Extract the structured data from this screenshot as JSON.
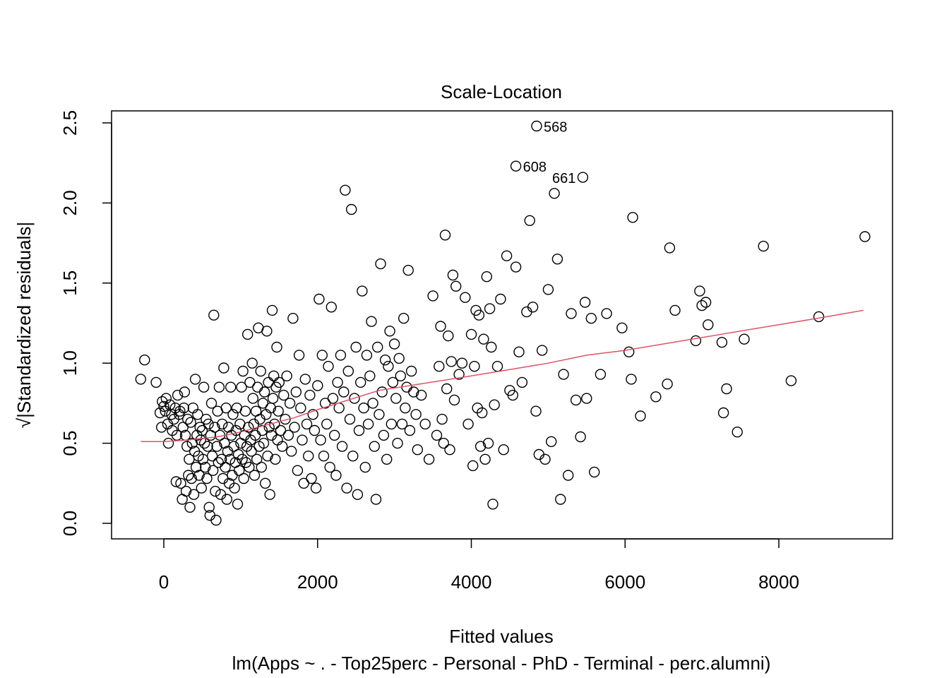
{
  "chart_data": {
    "type": "scatter",
    "title": "Scale-Location",
    "xlabel": "Fitted values",
    "ylabel": "√|Standardized residuals|",
    "subtitle": "lm(Apps ~ . - Top25perc - Personal - PhD - Terminal - perc.alumni)",
    "xlim": [
      -350,
      9200
    ],
    "ylim": [
      -0.1,
      2.6
    ],
    "x_ticks": [
      0,
      2000,
      4000,
      6000,
      8000
    ],
    "y_ticks": [
      0.0,
      0.5,
      1.0,
      1.5,
      2.0,
      2.5
    ],
    "x_tick_labels": [
      "0",
      "2000",
      "4000",
      "6000",
      "8000"
    ],
    "y_tick_labels": [
      "0.0",
      "0.5",
      "1.0",
      "1.5",
      "2.0",
      "2.5"
    ],
    "grid": false,
    "legend": "none",
    "colors": {
      "points": "#000000",
      "smooth": "#DF536B"
    },
    "labeled_points": [
      {
        "label": "568",
        "x": 4850,
        "y": 2.48
      },
      {
        "label": "608",
        "x": 4580,
        "y": 2.23
      },
      {
        "label": "661",
        "x": 5450,
        "y": 2.16
      }
    ],
    "smooth_line": [
      [
        -300,
        0.51
      ],
      [
        0,
        0.51
      ],
      [
        300,
        0.52
      ],
      [
        700,
        0.54
      ],
      [
        1000,
        0.57
      ],
      [
        1300,
        0.61
      ],
      [
        1700,
        0.66
      ],
      [
        2000,
        0.71
      ],
      [
        2400,
        0.77
      ],
      [
        2800,
        0.83
      ],
      [
        3200,
        0.86
      ],
      [
        3600,
        0.89
      ],
      [
        4000,
        0.92
      ],
      [
        4500,
        0.96
      ],
      [
        5000,
        1.0
      ],
      [
        5500,
        1.05
      ],
      [
        6000,
        1.08
      ],
      [
        6500,
        1.12
      ],
      [
        7000,
        1.16
      ],
      [
        7500,
        1.2
      ],
      [
        8000,
        1.24
      ],
      [
        8500,
        1.28
      ],
      [
        9100,
        1.33
      ]
    ],
    "points": [
      [
        -300,
        0.9
      ],
      [
        -250,
        1.02
      ],
      [
        -100,
        0.88
      ],
      [
        -50,
        0.69
      ],
      [
        -30,
        0.6
      ],
      [
        -20,
        0.76
      ],
      [
        0,
        0.73
      ],
      [
        20,
        0.7
      ],
      [
        30,
        0.78
      ],
      [
        50,
        0.62
      ],
      [
        60,
        0.5
      ],
      [
        80,
        0.74
      ],
      [
        100,
        0.68
      ],
      [
        110,
        0.58
      ],
      [
        130,
        0.65
      ],
      [
        150,
        0.72
      ],
      [
        160,
        0.26
      ],
      [
        170,
        0.55
      ],
      [
        180,
        0.8
      ],
      [
        200,
        0.68
      ],
      [
        210,
        0.7
      ],
      [
        220,
        0.25
      ],
      [
        240,
        0.15
      ],
      [
        250,
        0.6
      ],
      [
        260,
        0.72
      ],
      [
        270,
        0.82
      ],
      [
        280,
        0.55
      ],
      [
        290,
        0.2
      ],
      [
        300,
        0.48
      ],
      [
        310,
        0.65
      ],
      [
        320,
        0.3
      ],
      [
        330,
        0.4
      ],
      [
        340,
        0.1
      ],
      [
        350,
        0.63
      ],
      [
        360,
        0.28
      ],
      [
        370,
        0.5
      ],
      [
        380,
        0.72
      ],
      [
        390,
        0.18
      ],
      [
        400,
        0.45
      ],
      [
        410,
        0.9
      ],
      [
        420,
        0.35
      ],
      [
        430,
        0.55
      ],
      [
        440,
        0.68
      ],
      [
        450,
        0.42
      ],
      [
        460,
        0.3
      ],
      [
        470,
        0.6
      ],
      [
        480,
        0.52
      ],
      [
        490,
        0.22
      ],
      [
        500,
        0.58
      ],
      [
        510,
        0.4
      ],
      [
        520,
        0.85
      ],
      [
        530,
        0.5
      ],
      [
        540,
        0.35
      ],
      [
        550,
        0.65
      ],
      [
        560,
        0.28
      ],
      [
        570,
        0.48
      ],
      [
        580,
        0.62
      ],
      [
        590,
        0.1
      ],
      [
        600,
        0.05
      ],
      [
        610,
        0.55
      ],
      [
        620,
        0.75
      ],
      [
        630,
        0.42
      ],
      [
        640,
        0.33
      ],
      [
        650,
        1.3
      ],
      [
        660,
        0.6
      ],
      [
        670,
        0.2
      ],
      [
        680,
        0.02
      ],
      [
        690,
        0.48
      ],
      [
        700,
        0.7
      ],
      [
        710,
        0.38
      ],
      [
        720,
        0.85
      ],
      [
        730,
        0.55
      ],
      [
        740,
        0.18
      ],
      [
        750,
        0.4
      ],
      [
        760,
        0.62
      ],
      [
        770,
        0.28
      ],
      [
        780,
        0.97
      ],
      [
        790,
        0.5
      ],
      [
        800,
        0.35
      ],
      [
        810,
        0.72
      ],
      [
        820,
        0.15
      ],
      [
        830,
        0.45
      ],
      [
        840,
        0.6
      ],
      [
        850,
        0.25
      ],
      [
        860,
        0.4
      ],
      [
        870,
        0.85
      ],
      [
        880,
        0.55
      ],
      [
        890,
        0.3
      ],
      [
        900,
        0.68
      ],
      [
        910,
        0.48
      ],
      [
        920,
        0.22
      ],
      [
        930,
        0.38
      ],
      [
        940,
        0.58
      ],
      [
        950,
        0.72
      ],
      [
        960,
        0.12
      ],
      [
        970,
        0.43
      ],
      [
        980,
        0.33
      ],
      [
        990,
        0.62
      ],
      [
        1000,
        0.5
      ],
      [
        1010,
        0.85
      ],
      [
        1020,
        0.4
      ],
      [
        1030,
        0.95
      ],
      [
        1040,
        0.28
      ],
      [
        1050,
        0.55
      ],
      [
        1060,
        0.7
      ],
      [
        1070,
        0.38
      ],
      [
        1080,
        0.48
      ],
      [
        1090,
        1.18
      ],
      [
        1100,
        0.6
      ],
      [
        1110,
        0.35
      ],
      [
        1120,
        0.88
      ],
      [
        1130,
        0.52
      ],
      [
        1140,
        0.45
      ],
      [
        1150,
        1.0
      ],
      [
        1160,
        0.78
      ],
      [
        1170,
        0.62
      ],
      [
        1180,
        0.3
      ],
      [
        1190,
        0.55
      ],
      [
        1200,
        0.7
      ],
      [
        1210,
        0.4
      ],
      [
        1220,
        0.85
      ],
      [
        1230,
        1.22
      ],
      [
        1240,
        0.48
      ],
      [
        1250,
        0.65
      ],
      [
        1260,
        0.95
      ],
      [
        1270,
        0.35
      ],
      [
        1280,
        0.58
      ],
      [
        1290,
        0.75
      ],
      [
        1300,
        0.5
      ],
      [
        1310,
        0.82
      ],
      [
        1320,
        0.25
      ],
      [
        1330,
        0.68
      ],
      [
        1340,
        1.2
      ],
      [
        1350,
        0.42
      ],
      [
        1360,
        0.88
      ],
      [
        1370,
        0.6
      ],
      [
        1380,
        0.18
      ],
      [
        1390,
        0.72
      ],
      [
        1400,
        0.55
      ],
      [
        1410,
        1.33
      ],
      [
        1420,
        0.78
      ],
      [
        1430,
        0.92
      ],
      [
        1440,
        0.62
      ],
      [
        1450,
        0.4
      ],
      [
        1460,
        0.85
      ],
      [
        1470,
        1.1
      ],
      [
        1480,
        0.52
      ],
      [
        1490,
        0.7
      ],
      [
        1500,
        0.88
      ],
      [
        1520,
        0.58
      ],
      [
        1540,
        0.48
      ],
      [
        1560,
        0.8
      ],
      [
        1580,
        0.65
      ],
      [
        1600,
        0.92
      ],
      [
        1620,
        0.55
      ],
      [
        1640,
        0.75
      ],
      [
        1660,
        0.45
      ],
      [
        1680,
        1.28
      ],
      [
        1700,
        0.6
      ],
      [
        1720,
        0.82
      ],
      [
        1740,
        0.33
      ],
      [
        1760,
        1.05
      ],
      [
        1780,
        0.72
      ],
      [
        1800,
        0.52
      ],
      [
        1820,
        0.25
      ],
      [
        1840,
        0.9
      ],
      [
        1860,
        0.62
      ],
      [
        1880,
        0.42
      ],
      [
        1900,
        0.8
      ],
      [
        1920,
        0.28
      ],
      [
        1940,
        0.68
      ],
      [
        1960,
        0.58
      ],
      [
        1980,
        0.22
      ],
      [
        2000,
        0.86
      ],
      [
        2020,
        1.4
      ],
      [
        2040,
        0.52
      ],
      [
        2060,
        1.05
      ],
      [
        2080,
        0.42
      ],
      [
        2100,
        0.75
      ],
      [
        2120,
        0.62
      ],
      [
        2140,
        0.98
      ],
      [
        2160,
        0.35
      ],
      [
        2180,
        1.35
      ],
      [
        2200,
        0.78
      ],
      [
        2220,
        0.55
      ],
      [
        2240,
        0.3
      ],
      [
        2260,
        0.88
      ],
      [
        2280,
        0.72
      ],
      [
        2300,
        1.05
      ],
      [
        2320,
        0.48
      ],
      [
        2340,
        0.82
      ],
      [
        2360,
        2.08
      ],
      [
        2380,
        0.22
      ],
      [
        2400,
        0.95
      ],
      [
        2420,
        0.65
      ],
      [
        2440,
        1.96
      ],
      [
        2460,
        0.42
      ],
      [
        2480,
        0.78
      ],
      [
        2500,
        1.1
      ],
      [
        2520,
        0.18
      ],
      [
        2540,
        0.58
      ],
      [
        2560,
        0.88
      ],
      [
        2580,
        1.45
      ],
      [
        2600,
        0.72
      ],
      [
        2620,
        0.35
      ],
      [
        2640,
        1.05
      ],
      [
        2660,
        0.62
      ],
      [
        2680,
        0.92
      ],
      [
        2700,
        1.26
      ],
      [
        2720,
        0.75
      ],
      [
        2740,
        0.48
      ],
      [
        2760,
        0.15
      ],
      [
        2780,
        1.1
      ],
      [
        2800,
        0.68
      ],
      [
        2820,
        1.62
      ],
      [
        2840,
        0.82
      ],
      [
        2860,
        0.55
      ],
      [
        2880,
        1.02
      ],
      [
        2900,
        0.4
      ],
      [
        2920,
        0.98
      ],
      [
        2940,
        1.2
      ],
      [
        2960,
        0.62
      ],
      [
        2980,
        0.88
      ],
      [
        3000,
        1.12
      ],
      [
        3020,
        0.78
      ],
      [
        3040,
        0.5
      ],
      [
        3060,
        1.03
      ],
      [
        3080,
        0.92
      ],
      [
        3100,
        0.62
      ],
      [
        3120,
        1.28
      ],
      [
        3140,
        0.72
      ],
      [
        3160,
        0.85
      ],
      [
        3180,
        1.58
      ],
      [
        3200,
        0.58
      ],
      [
        3220,
        0.95
      ],
      [
        3250,
        0.82
      ],
      [
        3280,
        0.68
      ],
      [
        3300,
        0.46
      ],
      [
        3350,
        0.8
      ],
      [
        3400,
        0.62
      ],
      [
        3450,
        0.4
      ],
      [
        3500,
        1.42
      ],
      [
        3550,
        0.55
      ],
      [
        3580,
        0.98
      ],
      [
        3600,
        1.23
      ],
      [
        3620,
        0.65
      ],
      [
        3640,
        0.5
      ],
      [
        3660,
        1.8
      ],
      [
        3680,
        0.84
      ],
      [
        3700,
        1.17
      ],
      [
        3720,
        0.46
      ],
      [
        3740,
        1.01
      ],
      [
        3760,
        1.55
      ],
      [
        3780,
        0.77
      ],
      [
        3800,
        1.48
      ],
      [
        3840,
        0.93
      ],
      [
        3880,
        1.0
      ],
      [
        3920,
        1.41
      ],
      [
        3960,
        0.62
      ],
      [
        4000,
        1.18
      ],
      [
        4020,
        0.36
      ],
      [
        4040,
        0.98
      ],
      [
        4060,
        1.33
      ],
      [
        4080,
        0.72
      ],
      [
        4100,
        1.3
      ],
      [
        4120,
        0.48
      ],
      [
        4140,
        0.69
      ],
      [
        4160,
        1.15
      ],
      [
        4180,
        0.4
      ],
      [
        4200,
        1.54
      ],
      [
        4220,
        0.5
      ],
      [
        4240,
        1.34
      ],
      [
        4260,
        1.1
      ],
      [
        4280,
        0.12
      ],
      [
        4300,
        0.74
      ],
      [
        4340,
        0.98
      ],
      [
        4380,
        1.4
      ],
      [
        4420,
        0.46
      ],
      [
        4460,
        1.67
      ],
      [
        4500,
        0.83
      ],
      [
        4540,
        0.8
      ],
      [
        4580,
        1.6
      ],
      [
        4620,
        1.07
      ],
      [
        4660,
        0.88
      ],
      [
        4720,
        1.32
      ],
      [
        4760,
        1.89
      ],
      [
        4800,
        1.35
      ],
      [
        4840,
        0.7
      ],
      [
        4880,
        0.43
      ],
      [
        4920,
        1.08
      ],
      [
        4960,
        0.4
      ],
      [
        5000,
        1.46
      ],
      [
        5040,
        0.51
      ],
      [
        5080,
        2.06
      ],
      [
        5120,
        1.65
      ],
      [
        5160,
        0.15
      ],
      [
        5200,
        0.93
      ],
      [
        5260,
        0.3
      ],
      [
        5300,
        1.31
      ],
      [
        5360,
        0.77
      ],
      [
        5420,
        0.54
      ],
      [
        5480,
        1.38
      ],
      [
        5500,
        0.78
      ],
      [
        5560,
        1.28
      ],
      [
        5600,
        0.32
      ],
      [
        5680,
        0.93
      ],
      [
        5760,
        1.31
      ],
      [
        5960,
        1.22
      ],
      [
        6050,
        1.07
      ],
      [
        6080,
        0.9
      ],
      [
        6100,
        1.91
      ],
      [
        6200,
        0.67
      ],
      [
        6400,
        0.79
      ],
      [
        6550,
        0.87
      ],
      [
        6580,
        1.72
      ],
      [
        6650,
        1.33
      ],
      [
        6920,
        1.14
      ],
      [
        6970,
        1.45
      ],
      [
        7000,
        1.36
      ],
      [
        7050,
        1.38
      ],
      [
        7080,
        1.24
      ],
      [
        7260,
        1.13
      ],
      [
        7280,
        0.69
      ],
      [
        7320,
        0.84
      ],
      [
        7460,
        0.57
      ],
      [
        7550,
        1.15
      ],
      [
        7800,
        1.73
      ],
      [
        8160,
        0.89
      ],
      [
        8520,
        1.29
      ],
      [
        9120,
        1.79
      ],
      [
        4850,
        2.48
      ],
      [
        4580,
        2.23
      ],
      [
        5450,
        2.16
      ]
    ]
  }
}
